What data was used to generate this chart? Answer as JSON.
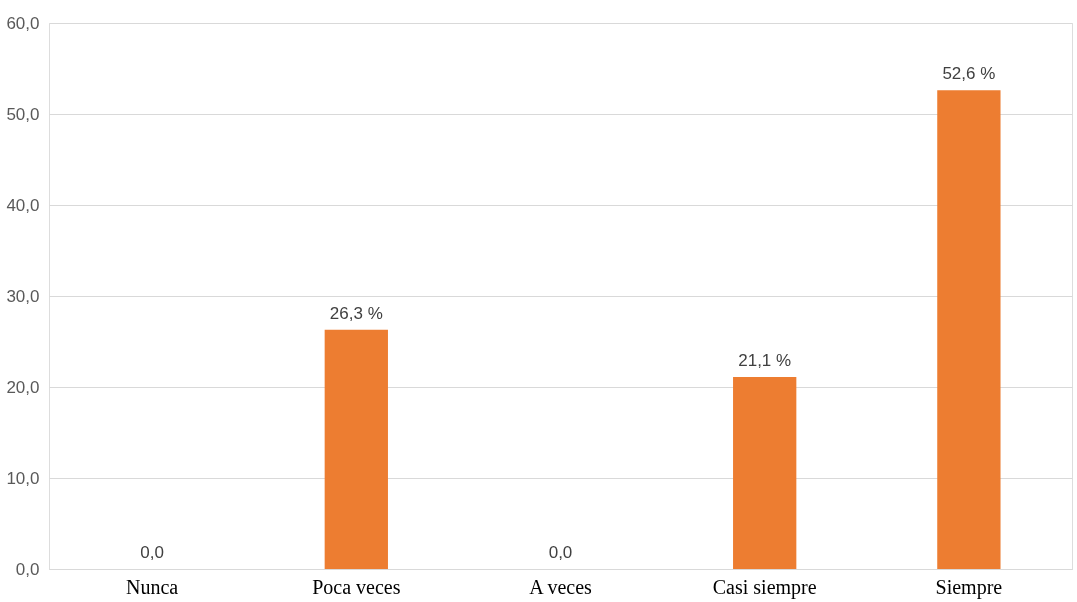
{
  "chart_data": {
    "type": "bar",
    "categories": [
      "Nunca",
      "Poca veces",
      "A veces",
      "Casi siempre",
      "Siempre"
    ],
    "values": [
      0,
      26.3,
      0,
      21.1,
      52.6
    ],
    "value_labels": [
      "0,0",
      "26,3 %",
      "0,0",
      "21,1 %",
      "52,6 %"
    ],
    "color": "#ed7d31",
    "ylim": [
      0,
      60
    ],
    "yticks": [
      {
        "value": 0,
        "label": "0,0"
      },
      {
        "value": 10,
        "label": "10,0"
      },
      {
        "value": 20,
        "label": "20,0"
      },
      {
        "value": 30,
        "label": "30,0"
      },
      {
        "value": 40,
        "label": "40,0"
      },
      {
        "value": 50,
        "label": "50,0"
      },
      {
        "value": 60,
        "label": "60,0"
      }
    ],
    "grid": "y"
  }
}
